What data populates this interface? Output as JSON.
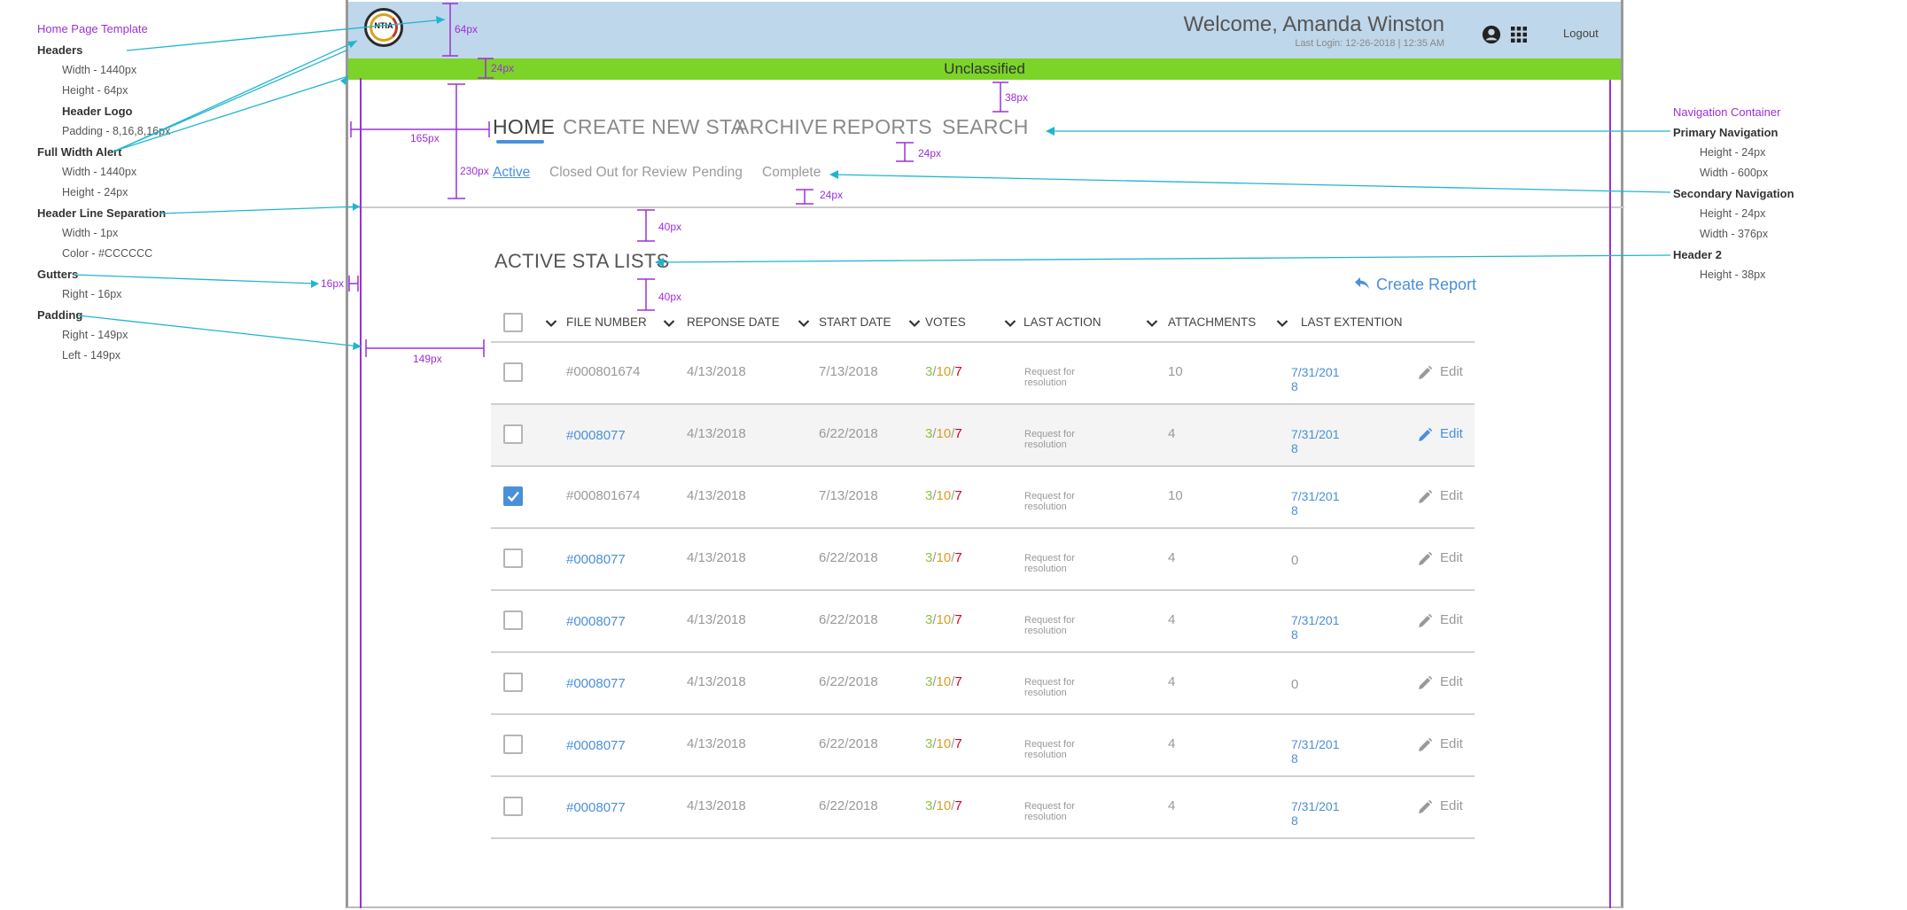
{
  "annotations_left": {
    "title": "Home Page Template",
    "groups": [
      {
        "head": "Headers",
        "items": [
          "Width - 1440px",
          "Height - 64px"
        ]
      },
      {
        "head": "Header Logo",
        "items": [
          "Padding - 8,16,8,16px"
        ]
      },
      {
        "head": "Full Width Alert",
        "items": [
          "Width - 1440px",
          "Height - 24px"
        ]
      },
      {
        "head": "Header Line Separation",
        "items": [
          "Width - 1px",
          "Color - #CCCCCC"
        ]
      },
      {
        "head": "Gutters",
        "items": [
          "Right - 16px"
        ]
      },
      {
        "head": "Padding",
        "items": [
          "Right - 149px",
          "Left - 149px"
        ]
      }
    ]
  },
  "annotations_right": {
    "title": "Navigation Container",
    "groups": [
      {
        "head": "Primary Navigation",
        "items": [
          "Height - 24px",
          "Width - 600px"
        ]
      },
      {
        "head": "Secondary Navigation",
        "items": [
          "Height - 24px",
          "Width - 376px"
        ]
      },
      {
        "head": "Header 2",
        "items": [
          "Height - 38px"
        ]
      }
    ]
  },
  "measurements": {
    "m64": "64px",
    "m24a": "24px",
    "m38": "38px",
    "m165": "165px",
    "m230": "230px",
    "m24b": "24px",
    "m24c": "24px",
    "m40a": "40px",
    "m40b": "40px",
    "m16": "16px",
    "m149": "149px"
  },
  "header": {
    "logo_text": "NTIA",
    "welcome": "Welcome, Amanda Winston",
    "last_login": "Last Login: 12-26-2018  |  12:35 AM",
    "logout": "Logout",
    "icons": [
      "account-circle-icon",
      "apps-grid-icon"
    ],
    "bg": "#BFD7EA"
  },
  "alert": {
    "text": "Unclassified",
    "color": "#7BD427"
  },
  "primary_nav": [
    "HOME",
    "CREATE NEW STA",
    "ARCHIVE",
    "REPORTS",
    "SEARCH"
  ],
  "secondary_nav": [
    "Active",
    "Closed Out for Review",
    "Pending",
    "Complete"
  ],
  "page_title": "ACTIVE STA LISTS",
  "create_report": "Create Report",
  "table": {
    "headers": [
      "FILE NUMBER",
      "REPONSE DATE",
      "START DATE",
      "VOTES",
      "LAST ACTION",
      "ATTACHMENTS",
      "LAST EXTENTION"
    ],
    "edit_label": "Edit",
    "rows": [
      {
        "checked": false,
        "highlight": false,
        "file": "#000801674",
        "file_link": false,
        "response": "4/13/2018",
        "start": "7/13/2018",
        "v1": "3",
        "v2": "10",
        "v3": "7",
        "action": "Request for resolution",
        "attachments": "10",
        "ext1": "7/31/201",
        "ext2": "8",
        "edit_active": false
      },
      {
        "checked": false,
        "highlight": true,
        "file": "#0008077",
        "file_link": true,
        "response": "4/13/2018",
        "start": "6/22/2018",
        "v1": "3",
        "v2": "10",
        "v3": "7",
        "action": "Request for resolution",
        "attachments": "4",
        "ext1": "7/31/201",
        "ext2": "8",
        "edit_active": true
      },
      {
        "checked": true,
        "highlight": false,
        "file": "#000801674",
        "file_link": false,
        "response": "4/13/2018",
        "start": "7/13/2018",
        "v1": "3",
        "v2": "10",
        "v3": "7",
        "action": "Request for resolution",
        "attachments": "10",
        "ext1": "7/31/201",
        "ext2": "8",
        "edit_active": false
      },
      {
        "checked": false,
        "highlight": false,
        "file": "#0008077",
        "file_link": true,
        "response": "4/13/2018",
        "start": "6/22/2018",
        "v1": "3",
        "v2": "10",
        "v3": "7",
        "action": "Request for resolution",
        "attachments": "4",
        "ext1": "0",
        "ext2": "",
        "edit_active": false
      },
      {
        "checked": false,
        "highlight": false,
        "file": "#0008077",
        "file_link": true,
        "response": "4/13/2018",
        "start": "6/22/2018",
        "v1": "3",
        "v2": "10",
        "v3": "7",
        "action": "Request for resolution",
        "attachments": "4",
        "ext1": "7/31/201",
        "ext2": "8",
        "edit_active": false
      },
      {
        "checked": false,
        "highlight": false,
        "file": "#0008077",
        "file_link": true,
        "response": "4/13/2018",
        "start": "6/22/2018",
        "v1": "3",
        "v2": "10",
        "v3": "7",
        "action": "Request for resolution",
        "attachments": "4",
        "ext1": "0",
        "ext2": "",
        "edit_active": false
      },
      {
        "checked": false,
        "highlight": false,
        "file": "#0008077",
        "file_link": true,
        "response": "4/13/2018",
        "start": "6/22/2018",
        "v1": "3",
        "v2": "10",
        "v3": "7",
        "action": "Request for resolution",
        "attachments": "4",
        "ext1": "7/31/201",
        "ext2": "8",
        "edit_active": false
      },
      {
        "checked": false,
        "highlight": false,
        "file": "#0008077",
        "file_link": true,
        "response": "4/13/2018",
        "start": "6/22/2018",
        "v1": "3",
        "v2": "10",
        "v3": "7",
        "action": "Request for resolution",
        "attachments": "4",
        "ext1": "7/31/201",
        "ext2": "8",
        "edit_active": false
      }
    ]
  },
  "colors": {
    "accent": "#4A90D9",
    "annotation": "#9B30D8",
    "leader": "#1FB5D0",
    "separator": "#CCCCCC",
    "vote_green": "#8AC43F",
    "vote_yellow": "#D8A020",
    "vote_red": "#D0021B"
  }
}
